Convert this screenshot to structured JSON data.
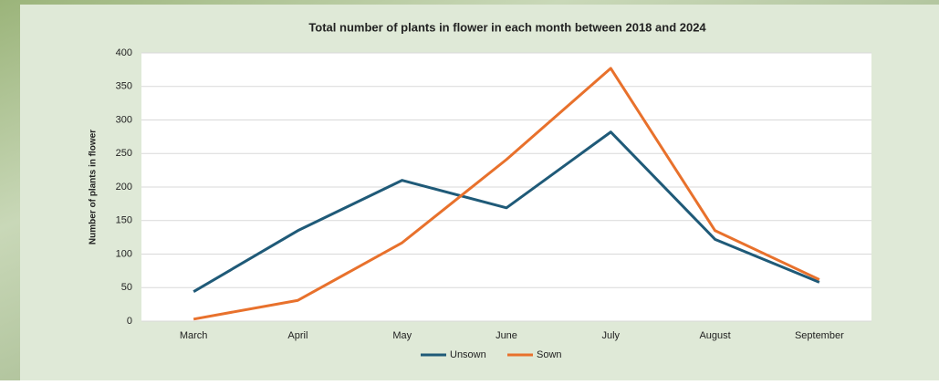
{
  "chart_data": {
    "type": "line",
    "title": "Total number of plants in flower in each month between 2018 and 2024",
    "y_label": "Number of plants in flower",
    "categories": [
      "March",
      "April",
      "May",
      "June",
      "July",
      "August",
      "September"
    ],
    "series": [
      {
        "name": "Unsown",
        "color": "#1f5a78",
        "values": [
          44,
          135,
          210,
          169,
          282,
          122,
          58
        ]
      },
      {
        "name": "Sown",
        "color": "#e8712c",
        "values": [
          3,
          31,
          117,
          241,
          377,
          135,
          62
        ]
      }
    ],
    "ylim": [
      0,
      400
    ],
    "yticks": [
      0,
      50,
      100,
      150,
      200,
      250,
      300,
      350,
      400
    ],
    "grid": true,
    "legend": "bottom"
  }
}
